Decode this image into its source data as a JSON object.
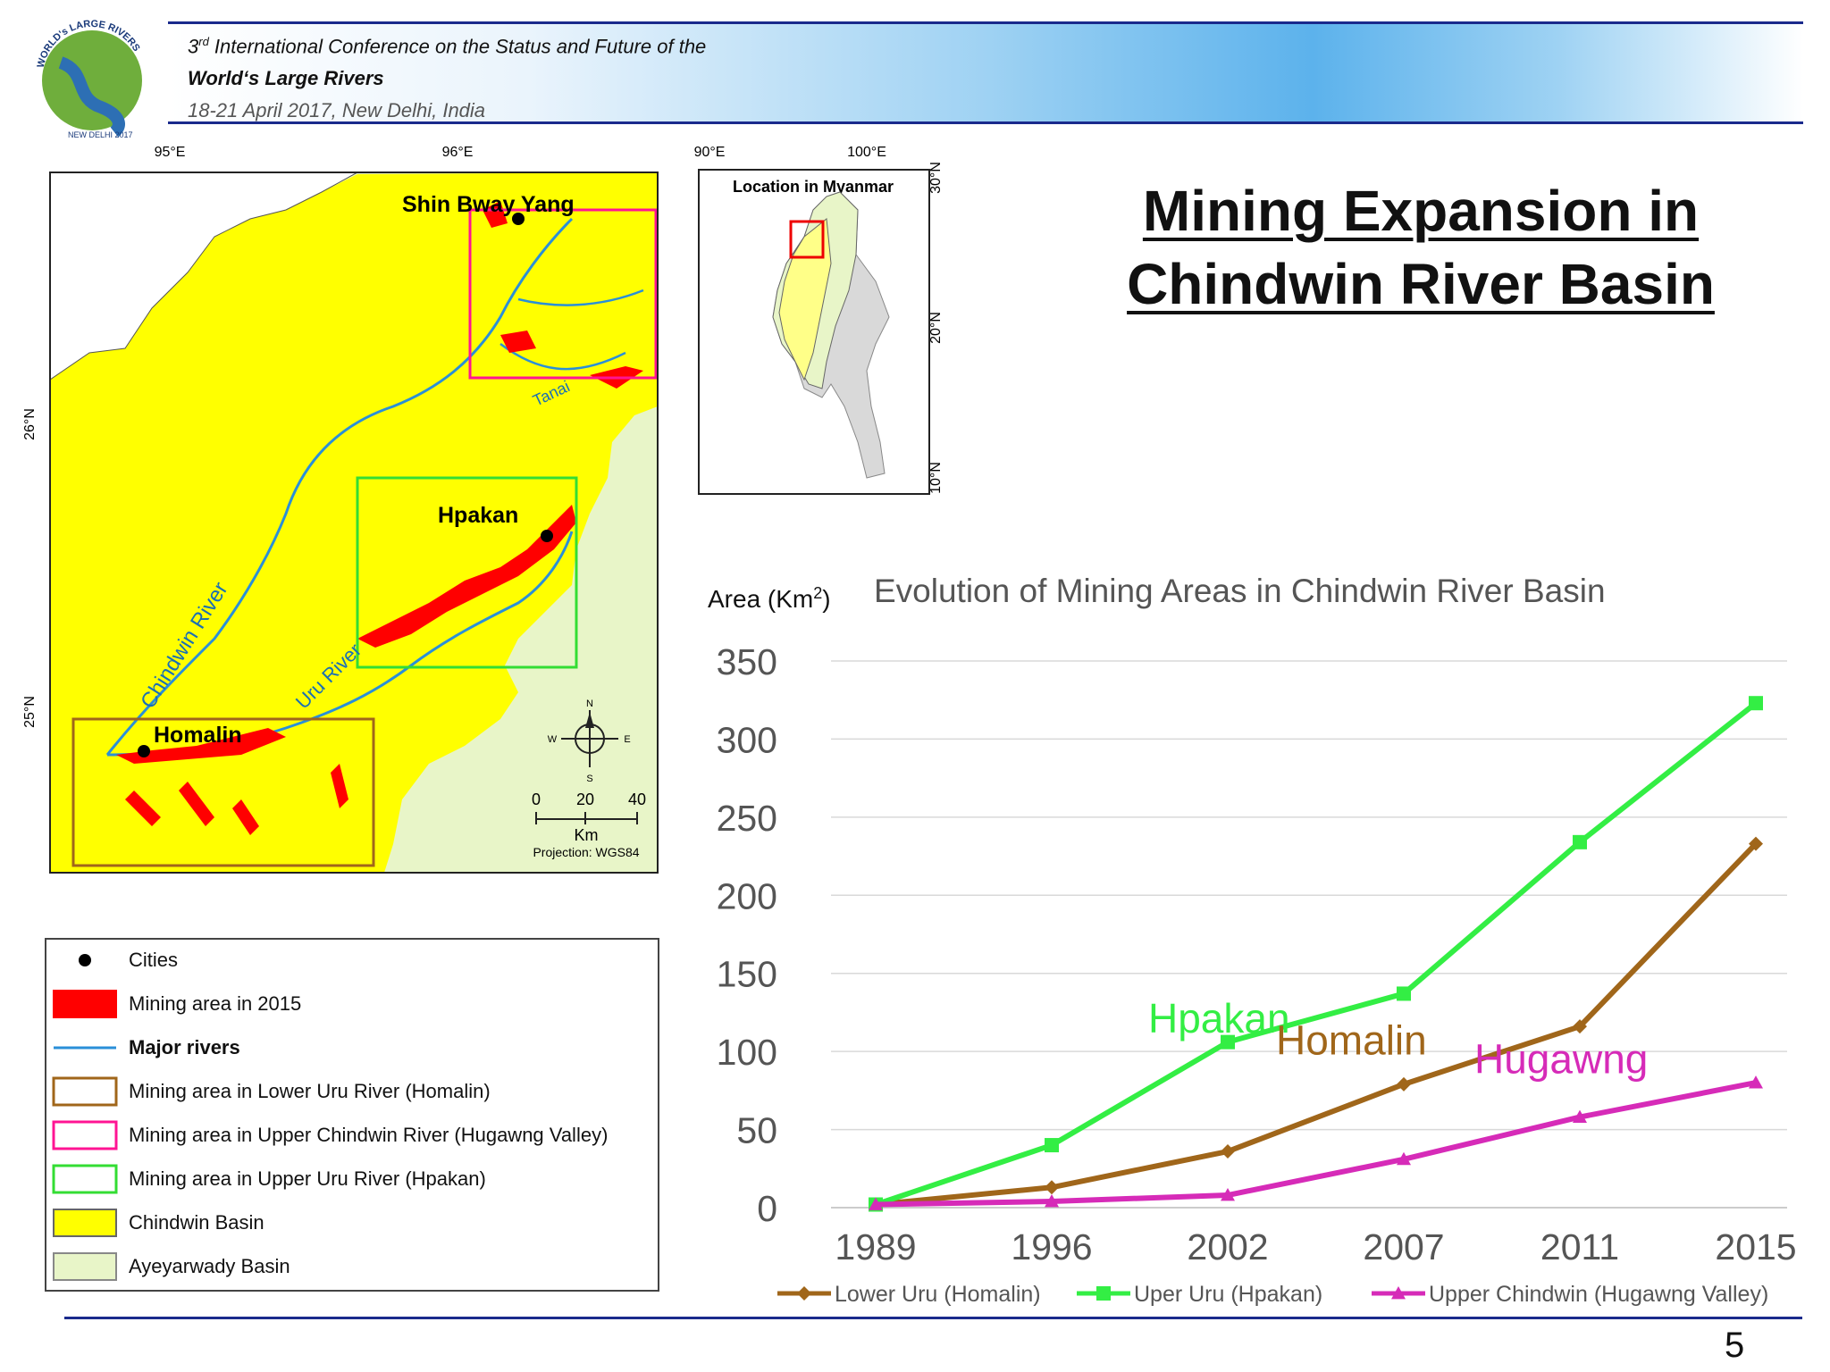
{
  "header": {
    "conference_ordinal": "3",
    "conference_ordinal_suffix": "rd",
    "conference_line": " International Conference on the Status and Future of the",
    "conference_name": "World‘s Large Rivers",
    "conference_date": "18-21 April 2017, New Delhi, India",
    "logo": {
      "top_text": "WORLD's LARGE RIVERS",
      "bottom_text": "NEW DELHI 2017",
      "icon": "world-rivers-logo"
    }
  },
  "title": {
    "line1": "Mining Expansion in",
    "line2": "Chindwin River Basin"
  },
  "map": {
    "lon_labels": [
      "95°E",
      "96°E"
    ],
    "lat_labels": [
      "26°N",
      "25°N"
    ],
    "cities": [
      "Shin Bway Yang",
      "Hpakan",
      "Homalin"
    ],
    "river_labels": [
      "Chindwin River",
      "Uru River",
      "Tanai"
    ],
    "compass": {
      "n": "N",
      "s": "S",
      "e": "E",
      "w": "W"
    },
    "scale": {
      "ticks": [
        "0",
        "20",
        "40"
      ],
      "unit": "Km",
      "projection": "Projection: WGS84"
    },
    "colors": {
      "chindwin": "#ffff00",
      "ayeyarwady": "#e8f5c8",
      "mining": "#ff0000",
      "rivers": "#2a8fd8",
      "homalin_box": "#a0661a",
      "hugawng_box": "#ff1493",
      "hpakan_box": "#33dd33"
    }
  },
  "inset": {
    "title": "Location in Myanmar",
    "lon_labels": [
      "90°E",
      "100°E"
    ],
    "lat_labels": [
      "30°N",
      "20°N",
      "10°N"
    ]
  },
  "legend": {
    "items": [
      {
        "label": "Cities",
        "symbol": "dot"
      },
      {
        "label": "Mining area in 2015",
        "symbol": "red-fill"
      },
      {
        "label": "Major rivers",
        "symbol": "line"
      },
      {
        "label": "Mining area in Lower Uru River (Homalin)",
        "symbol": "brown-box"
      },
      {
        "label": "Mining area in Upper Chindwin River (Hugawng Valley)",
        "symbol": "pink-box"
      },
      {
        "label": "Mining area in Upper Uru River (Hpakan)",
        "symbol": "green-box"
      },
      {
        "label": "Chindwin Basin",
        "symbol": "yellow-fill"
      },
      {
        "label": "Ayeyarwady Basin",
        "symbol": "pale-fill"
      }
    ]
  },
  "chart_data": {
    "type": "line",
    "title": "Evolution of Mining Areas in Chindwin River Basin",
    "ylabel_main": "Area (Km",
    "ylabel_sup": "2",
    "ylabel_end": ")",
    "categories": [
      "1989",
      "1996",
      "2002",
      "2007",
      "2011",
      "2015"
    ],
    "yticks": [
      "0",
      "50",
      "100",
      "150",
      "200",
      "250",
      "300",
      "350"
    ],
    "ylim": [
      0,
      350
    ],
    "grid": true,
    "legend_position": "bottom",
    "series": [
      {
        "name": "Lower Uru (Homalin)",
        "annotation": "Homalin",
        "color": "#a0661a",
        "marker": "diamond",
        "values": [
          2,
          13,
          36,
          79,
          116,
          233
        ]
      },
      {
        "name": "Uper Uru (Hpakan)",
        "annotation": "Hpakan",
        "color": "#33ee44",
        "marker": "square",
        "values": [
          2,
          40,
          106,
          137,
          234,
          323
        ]
      },
      {
        "name": "Upper Chindwin (Hugawng Valley)",
        "annotation": "Hugawng",
        "color": "#d62bb8",
        "marker": "triangle",
        "values": [
          2,
          4,
          8,
          31,
          58,
          80
        ]
      }
    ]
  },
  "page_number": "5"
}
